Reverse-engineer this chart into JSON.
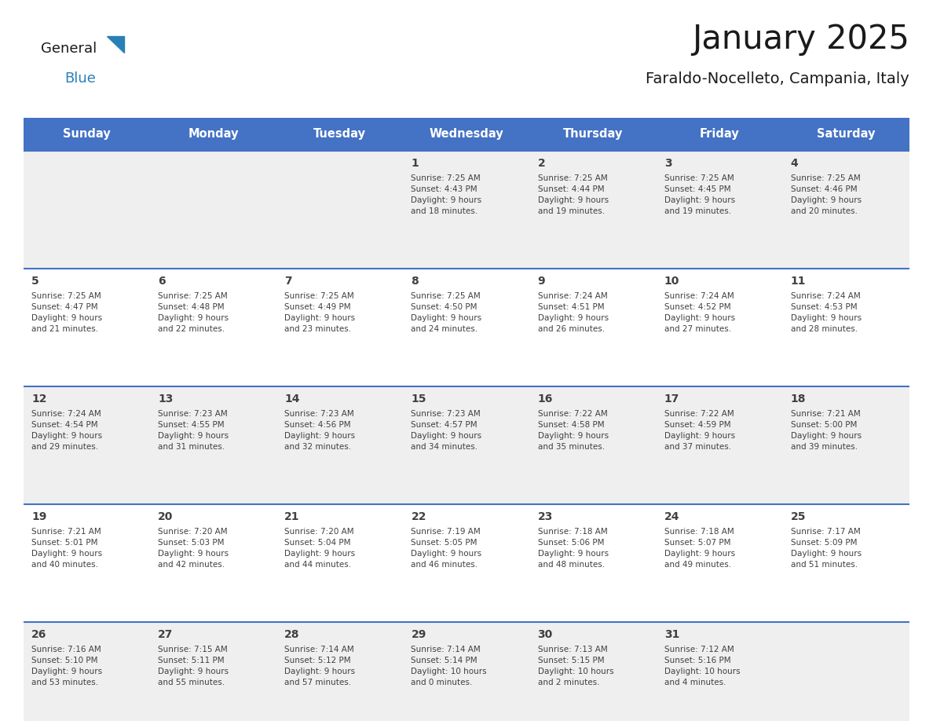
{
  "title": "January 2025",
  "subtitle": "Faraldo-Nocelleto, Campania, Italy",
  "days_of_week": [
    "Sunday",
    "Monday",
    "Tuesday",
    "Wednesday",
    "Thursday",
    "Friday",
    "Saturday"
  ],
  "header_bg": "#4472C4",
  "header_text_color": "#FFFFFF",
  "cell_bg_odd": "#EFEFEF",
  "cell_bg_even": "#FFFFFF",
  "divider_color": "#4472C4",
  "text_color": "#404040",
  "title_color": "#1a1a1a",
  "logo_black": "#1a1a1a",
  "logo_blue": "#2980B9",
  "weeks": [
    [
      {
        "day": null,
        "info": null
      },
      {
        "day": null,
        "info": null
      },
      {
        "day": null,
        "info": null
      },
      {
        "day": 1,
        "info": "Sunrise: 7:25 AM\nSunset: 4:43 PM\nDaylight: 9 hours\nand 18 minutes."
      },
      {
        "day": 2,
        "info": "Sunrise: 7:25 AM\nSunset: 4:44 PM\nDaylight: 9 hours\nand 19 minutes."
      },
      {
        "day": 3,
        "info": "Sunrise: 7:25 AM\nSunset: 4:45 PM\nDaylight: 9 hours\nand 19 minutes."
      },
      {
        "day": 4,
        "info": "Sunrise: 7:25 AM\nSunset: 4:46 PM\nDaylight: 9 hours\nand 20 minutes."
      }
    ],
    [
      {
        "day": 5,
        "info": "Sunrise: 7:25 AM\nSunset: 4:47 PM\nDaylight: 9 hours\nand 21 minutes."
      },
      {
        "day": 6,
        "info": "Sunrise: 7:25 AM\nSunset: 4:48 PM\nDaylight: 9 hours\nand 22 minutes."
      },
      {
        "day": 7,
        "info": "Sunrise: 7:25 AM\nSunset: 4:49 PM\nDaylight: 9 hours\nand 23 minutes."
      },
      {
        "day": 8,
        "info": "Sunrise: 7:25 AM\nSunset: 4:50 PM\nDaylight: 9 hours\nand 24 minutes."
      },
      {
        "day": 9,
        "info": "Sunrise: 7:24 AM\nSunset: 4:51 PM\nDaylight: 9 hours\nand 26 minutes."
      },
      {
        "day": 10,
        "info": "Sunrise: 7:24 AM\nSunset: 4:52 PM\nDaylight: 9 hours\nand 27 minutes."
      },
      {
        "day": 11,
        "info": "Sunrise: 7:24 AM\nSunset: 4:53 PM\nDaylight: 9 hours\nand 28 minutes."
      }
    ],
    [
      {
        "day": 12,
        "info": "Sunrise: 7:24 AM\nSunset: 4:54 PM\nDaylight: 9 hours\nand 29 minutes."
      },
      {
        "day": 13,
        "info": "Sunrise: 7:23 AM\nSunset: 4:55 PM\nDaylight: 9 hours\nand 31 minutes."
      },
      {
        "day": 14,
        "info": "Sunrise: 7:23 AM\nSunset: 4:56 PM\nDaylight: 9 hours\nand 32 minutes."
      },
      {
        "day": 15,
        "info": "Sunrise: 7:23 AM\nSunset: 4:57 PM\nDaylight: 9 hours\nand 34 minutes."
      },
      {
        "day": 16,
        "info": "Sunrise: 7:22 AM\nSunset: 4:58 PM\nDaylight: 9 hours\nand 35 minutes."
      },
      {
        "day": 17,
        "info": "Sunrise: 7:22 AM\nSunset: 4:59 PM\nDaylight: 9 hours\nand 37 minutes."
      },
      {
        "day": 18,
        "info": "Sunrise: 7:21 AM\nSunset: 5:00 PM\nDaylight: 9 hours\nand 39 minutes."
      }
    ],
    [
      {
        "day": 19,
        "info": "Sunrise: 7:21 AM\nSunset: 5:01 PM\nDaylight: 9 hours\nand 40 minutes."
      },
      {
        "day": 20,
        "info": "Sunrise: 7:20 AM\nSunset: 5:03 PM\nDaylight: 9 hours\nand 42 minutes."
      },
      {
        "day": 21,
        "info": "Sunrise: 7:20 AM\nSunset: 5:04 PM\nDaylight: 9 hours\nand 44 minutes."
      },
      {
        "day": 22,
        "info": "Sunrise: 7:19 AM\nSunset: 5:05 PM\nDaylight: 9 hours\nand 46 minutes."
      },
      {
        "day": 23,
        "info": "Sunrise: 7:18 AM\nSunset: 5:06 PM\nDaylight: 9 hours\nand 48 minutes."
      },
      {
        "day": 24,
        "info": "Sunrise: 7:18 AM\nSunset: 5:07 PM\nDaylight: 9 hours\nand 49 minutes."
      },
      {
        "day": 25,
        "info": "Sunrise: 7:17 AM\nSunset: 5:09 PM\nDaylight: 9 hours\nand 51 minutes."
      }
    ],
    [
      {
        "day": 26,
        "info": "Sunrise: 7:16 AM\nSunset: 5:10 PM\nDaylight: 9 hours\nand 53 minutes."
      },
      {
        "day": 27,
        "info": "Sunrise: 7:15 AM\nSunset: 5:11 PM\nDaylight: 9 hours\nand 55 minutes."
      },
      {
        "day": 28,
        "info": "Sunrise: 7:14 AM\nSunset: 5:12 PM\nDaylight: 9 hours\nand 57 minutes."
      },
      {
        "day": 29,
        "info": "Sunrise: 7:14 AM\nSunset: 5:14 PM\nDaylight: 10 hours\nand 0 minutes."
      },
      {
        "day": 30,
        "info": "Sunrise: 7:13 AM\nSunset: 5:15 PM\nDaylight: 10 hours\nand 2 minutes."
      },
      {
        "day": 31,
        "info": "Sunrise: 7:12 AM\nSunset: 5:16 PM\nDaylight: 10 hours\nand 4 minutes."
      },
      {
        "day": null,
        "info": null
      }
    ]
  ]
}
